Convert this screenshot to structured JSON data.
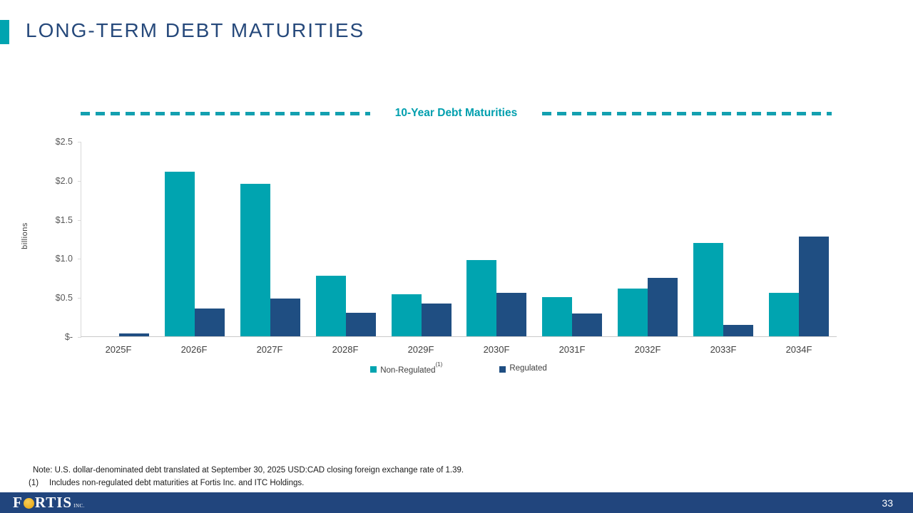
{
  "slide": {
    "title": "LONG-TERM DEBT MATURITIES"
  },
  "chart_data": {
    "type": "bar",
    "title": "10-Year Debt Maturities",
    "ylabel": "billions",
    "ylim": [
      0,
      2.5
    ],
    "ytick_labels": [
      "$2.5",
      "$2.0",
      "$1.5",
      "$1.0",
      "$0.5",
      "$-"
    ],
    "categories": [
      "2025F",
      "2026F",
      "2027F",
      "2028F",
      "2029F",
      "2030F",
      "2031F",
      "2032F",
      "2033F",
      "2034F"
    ],
    "series": [
      {
        "name": "Non-Regulated",
        "superscript": "(1)",
        "color": "#00A4B0",
        "values": [
          0.0,
          2.11,
          1.95,
          0.78,
          0.54,
          0.98,
          0.5,
          0.61,
          1.2,
          0.56
        ]
      },
      {
        "name": "Regulated",
        "superscript": "",
        "color": "#1F4E82",
        "values": [
          0.04,
          0.36,
          0.48,
          0.3,
          0.42,
          0.56,
          0.29,
          0.75,
          0.15,
          1.28
        ]
      }
    ],
    "grid": false,
    "legend_position": "bottom"
  },
  "notes": {
    "note": "Note: U.S. dollar-denominated debt translated at September 30, 2025 USD:CAD closing foreign exchange rate of 1.39.",
    "footnote_marker": "(1)",
    "footnote": "Includes non-regulated debt maturities at Fortis Inc. and ITC Holdings."
  },
  "footer": {
    "logo_start": "F",
    "logo_end": "RTIS",
    "logo_suffix": "INC.",
    "page_number": "33"
  },
  "colors": {
    "accent_teal": "#00A4B0",
    "dash_teal": "#13A0B0",
    "chart_title_teal": "#009FAE",
    "bar_non_regulated": "#00A4B0",
    "bar_regulated": "#1F4E82",
    "title_navy": "#26497B",
    "footer_navy": "#21457D",
    "axis_text": "#595959"
  }
}
